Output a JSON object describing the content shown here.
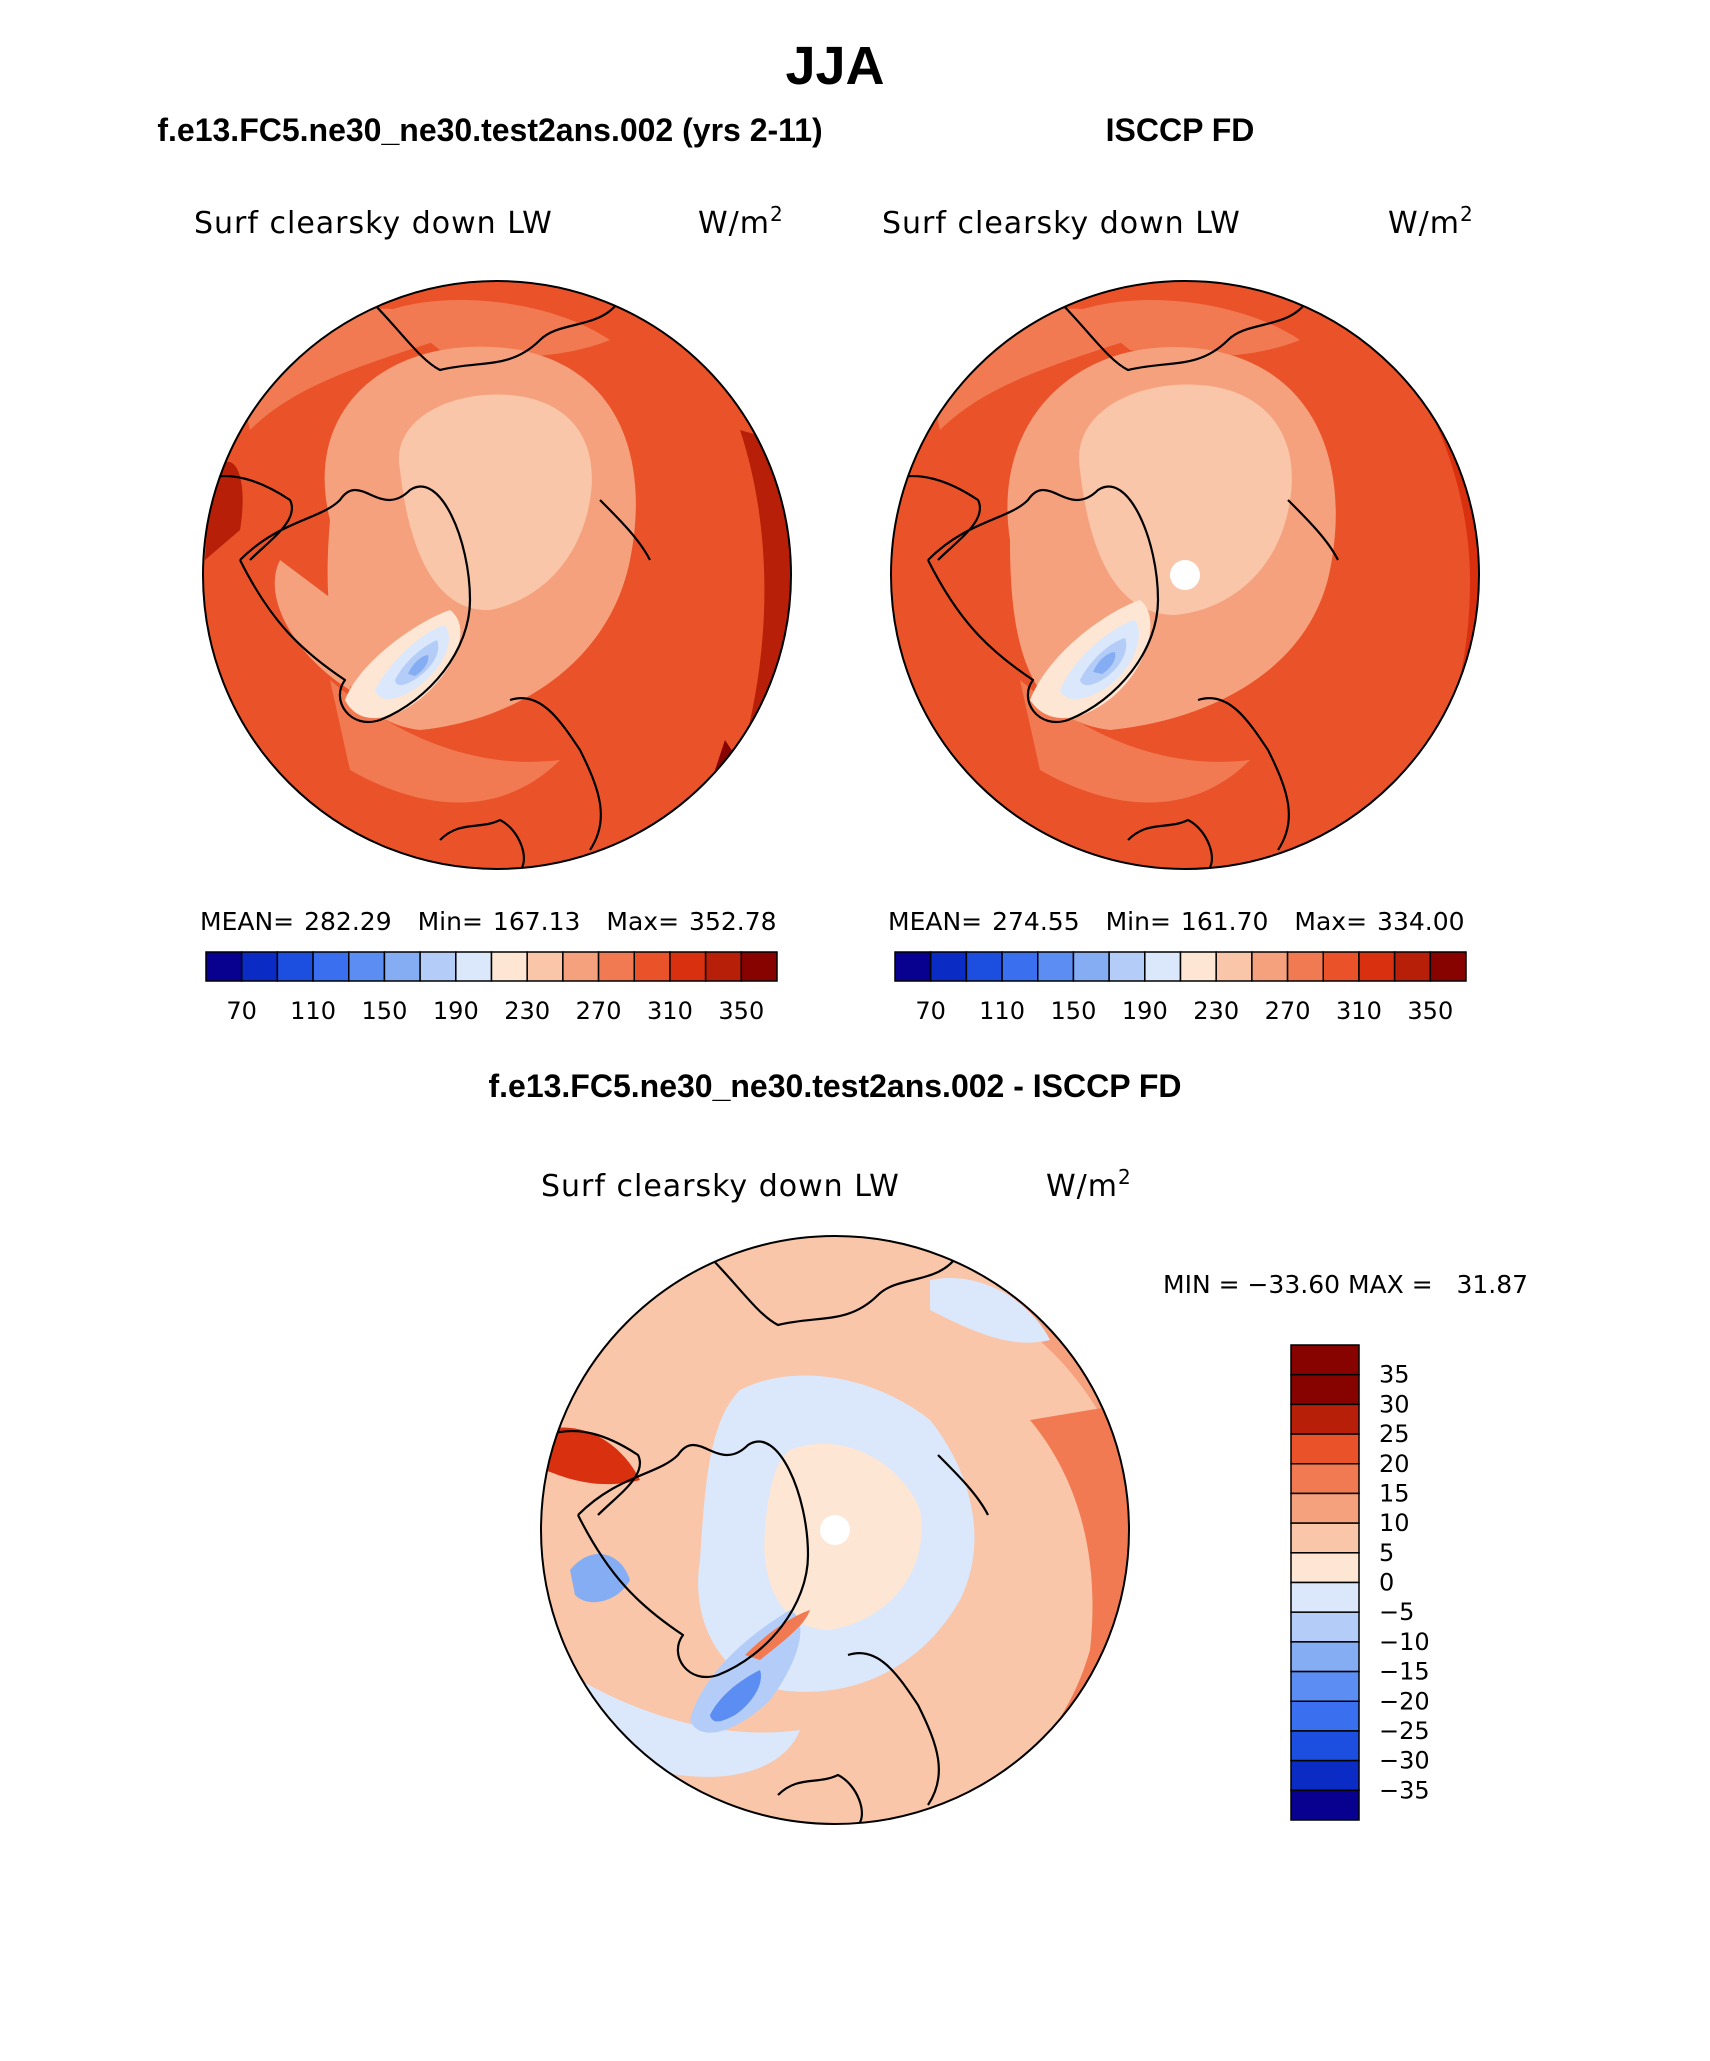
{
  "season": "JJA",
  "colors": {
    "scale": [
      "#08008f",
      "#0a2bc4",
      "#1c4fe0",
      "#3a6ff0",
      "#5b8df2",
      "#85adf4",
      "#b4cdf8",
      "#dbe8fb",
      "#fde6d4",
      "#f9c6a9",
      "#f6a17e",
      "#f27a52",
      "#ea5329",
      "#d93110",
      "#b71f08",
      "#870300"
    ],
    "diff_scale": [
      "#08008f",
      "#0a2bc4",
      "#1c4fe0",
      "#3a6ff0",
      "#5b8df2",
      "#85adf4",
      "#b4cdf8",
      "#dbe8fb",
      "#fde6d4",
      "#f9c6a9",
      "#f6a17e",
      "#f27a52",
      "#ea5329",
      "#b71f08",
      "#870300"
    ],
    "land_greenland_low": "#b4cdf8",
    "missing": "#ffffff"
  },
  "panels": [
    {
      "title": "f.e13.FC5.ne30_ne30.test2ans.002 (yrs 2-11)",
      "variable": "Surf clearsky down LW",
      "units": "W/m",
      "units_sup": "2",
      "stats": {
        "mean_label": "MEAN=",
        "mean": "282.29",
        "min_label": "Min=",
        "min": "167.13",
        "max_label": "Max=",
        "max": "352.78"
      }
    },
    {
      "title": "ISCCP FD",
      "variable": "Surf clearsky down LW",
      "units": "W/m",
      "units_sup": "2",
      "stats": {
        "mean_label": "MEAN=",
        "mean": "274.55",
        "min_label": "Min=",
        "min": "161.70",
        "max_label": "Max=",
        "max": "334.00"
      }
    }
  ],
  "colorbar_ticks": [
    "70",
    "110",
    "150",
    "190",
    "230",
    "270",
    "310",
    "350"
  ],
  "difference": {
    "title": "f.e13.FC5.ne30_ne30.test2ans.002 - ISCCP FD",
    "variable": "Surf clearsky down LW",
    "units": "W/m",
    "units_sup": "2",
    "minmax": "MIN = −33.60 MAX =   31.87",
    "colorbar_ticks": [
      "35",
      "30",
      "25",
      "20",
      "15",
      "10",
      "5",
      "0",
      "−5",
      "−10",
      "−15",
      "−20",
      "−25",
      "−30",
      "−35"
    ]
  }
}
